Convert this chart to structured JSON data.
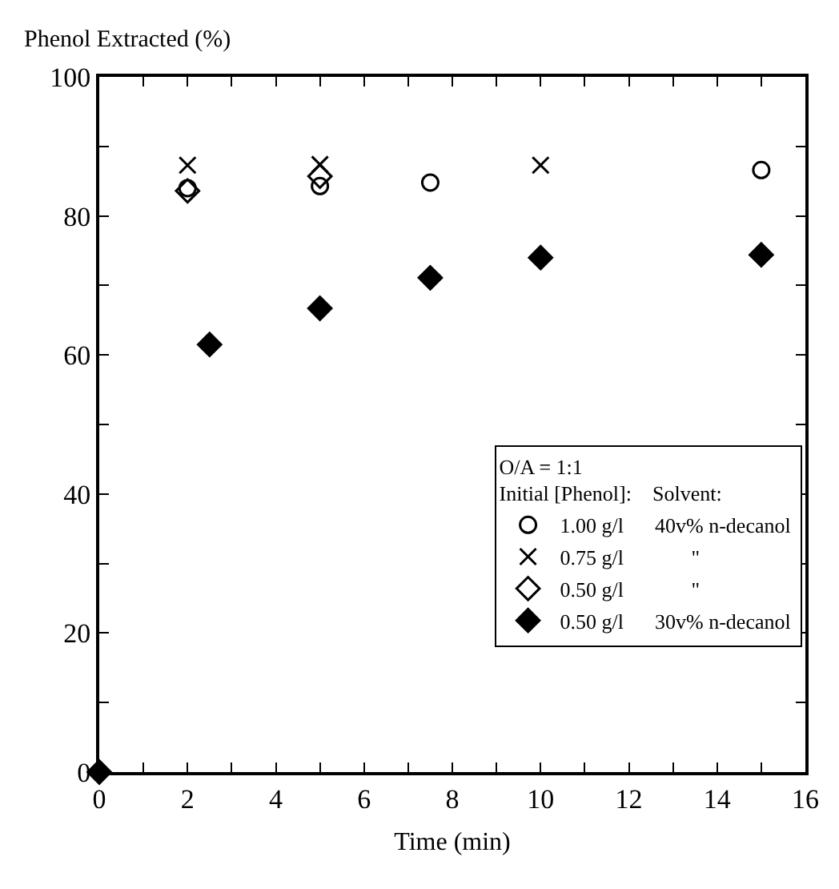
{
  "chart_data": {
    "type": "scatter",
    "xlabel": "Time (min)",
    "ylabel": "Phenol Extracted (%)",
    "legend_title": "O/A = 1:1\nInitial [Phenol]:    Solvent:",
    "xlim": [
      0,
      16
    ],
    "ylim": [
      0,
      100
    ],
    "xticks": [
      0,
      {
        "value": 1,
        "label": null
      },
      2,
      {
        "value": 3,
        "label": null
      },
      4,
      {
        "value": 5,
        "label": null
      },
      6,
      {
        "value": 7,
        "label": null
      },
      8,
      {
        "value": 9,
        "label": null
      },
      10,
      {
        "value": 11,
        "label": null
      },
      12,
      {
        "value": 13,
        "label": null
      },
      14,
      {
        "value": 15,
        "label": null
      },
      16
    ],
    "yticks": [
      0,
      {
        "value": 10,
        "label": null
      },
      20,
      {
        "value": 30,
        "label": null
      },
      40,
      {
        "value": 50,
        "label": null
      },
      60,
      {
        "value": 70,
        "label": null
      },
      80,
      {
        "value": 90,
        "label": null
      },
      100
    ],
    "legend": "bottom right",
    "series": [
      {
        "name": "1.00 g/l      40v% n-decanol",
        "color": "#000000",
        "marker": "circle-open",
        "x": [
          2,
          5,
          7.5,
          15
        ],
        "values": [
          84,
          84.3,
          84.8,
          86.6
        ]
      },
      {
        "name": "0.75 g/l             \"",
        "color": "#000000",
        "marker": "cross",
        "x": [
          2,
          5,
          10
        ],
        "values": [
          87.3,
          87.4,
          87.3
        ]
      },
      {
        "name": "0.50 g/l             \"",
        "color": "#000000",
        "marker": "diamond-open",
        "x": [
          2,
          5
        ],
        "values": [
          83.6,
          85.7
        ]
      },
      {
        "name": "0.50 g/l      30v% n-decanol",
        "color": "#000000",
        "marker": "diamond",
        "x": [
          0,
          2.5,
          5,
          7.5,
          10,
          15
        ],
        "values": [
          0,
          61.5,
          66.7,
          71.1,
          74,
          74.4
        ]
      }
    ]
  }
}
